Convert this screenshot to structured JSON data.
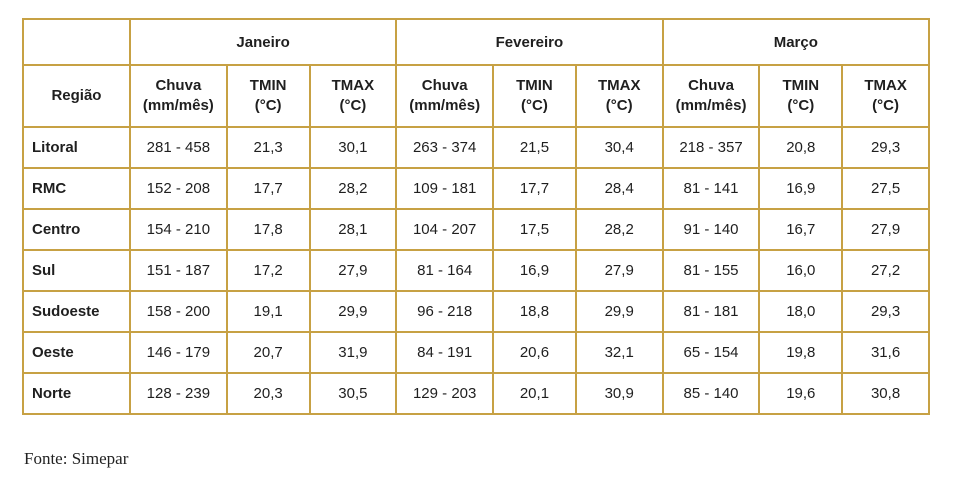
{
  "colors": {
    "table_border": "#C7A144",
    "text": "#1f1f1f"
  },
  "table": {
    "corner_label": "",
    "region_header": "Região",
    "month_groups": [
      "Janeiro",
      "Fevereiro",
      "Março"
    ],
    "sub_headers": [
      {
        "line1": "Chuva",
        "line2": "(mm/mês)"
      },
      {
        "line1": "TMIN",
        "line2": "(°C)"
      },
      {
        "line1": "TMAX",
        "line2": "(°C)"
      }
    ],
    "rows": [
      {
        "region": "Litoral",
        "values": [
          "281 - 458",
          "21,3",
          "30,1",
          "263 - 374",
          "21,5",
          "30,4",
          "218 - 357",
          "20,8",
          "29,3"
        ]
      },
      {
        "region": "RMC",
        "values": [
          "152 - 208",
          "17,7",
          "28,2",
          "109 - 181",
          "17,7",
          "28,4",
          "81 - 141",
          "16,9",
          "27,5"
        ]
      },
      {
        "region": "Centro",
        "values": [
          "154 - 210",
          "17,8",
          "28,1",
          "104 - 207",
          "17,5",
          "28,2",
          "91 - 140",
          "16,7",
          "27,9"
        ]
      },
      {
        "region": "Sul",
        "values": [
          "151 - 187",
          "17,2",
          "27,9",
          "81 - 164",
          "16,9",
          "27,9",
          "81 - 155",
          "16,0",
          "27,2"
        ]
      },
      {
        "region": "Sudoeste",
        "values": [
          "158 - 200",
          "19,1",
          "29,9",
          "96 - 218",
          "18,8",
          "29,9",
          "81 - 181",
          "18,0",
          "29,3"
        ]
      },
      {
        "region": "Oeste",
        "values": [
          "146 - 179",
          "20,7",
          "31,9",
          "84 - 191",
          "20,6",
          "32,1",
          "65 - 154",
          "19,8",
          "31,6"
        ]
      },
      {
        "region": "Norte",
        "values": [
          "128 - 239",
          "20,3",
          "30,5",
          "129 - 203",
          "20,1",
          "30,9",
          "85 - 140",
          "19,6",
          "30,8"
        ]
      }
    ]
  },
  "footer": {
    "source": "Fonte: Simepar"
  }
}
